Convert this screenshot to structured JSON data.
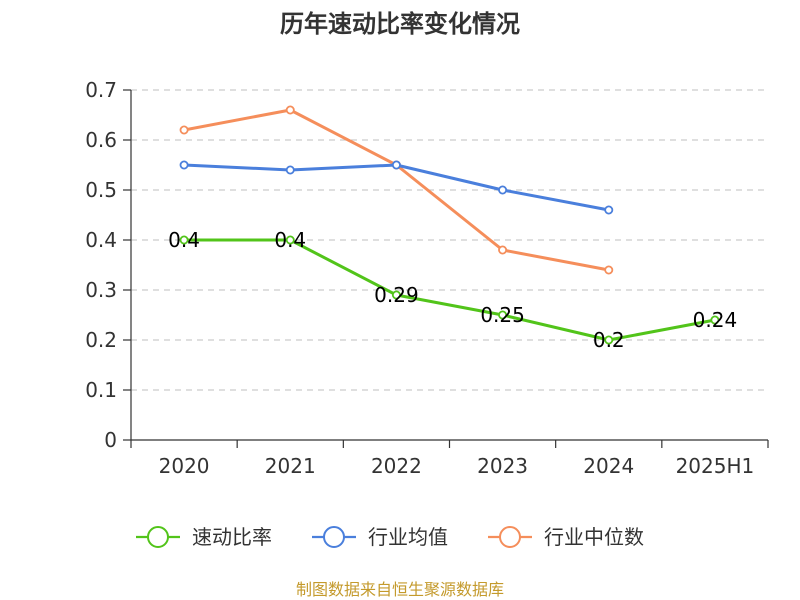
{
  "chart_data": {
    "type": "line",
    "title": "历年速动比率变化情况",
    "categories": [
      "2020",
      "2021",
      "2022",
      "2023",
      "2024",
      "2025H1"
    ],
    "ylim": [
      0,
      0.7
    ],
    "yticks": [
      "0",
      "0.1",
      "0.2",
      "0.3",
      "0.4",
      "0.5",
      "0.6",
      "0.7"
    ],
    "grid": true,
    "legend_position": "bottom",
    "series": [
      {
        "name": "速动比率",
        "color": "#52c41a",
        "values": [
          0.4,
          0.4,
          0.29,
          0.25,
          0.2,
          0.24
        ],
        "labels": [
          "0.4",
          "0.4",
          "0.29",
          "0.25",
          "0.2",
          "0.24"
        ]
      },
      {
        "name": "行业均值",
        "color": "#4a7fdc",
        "values": [
          0.55,
          0.54,
          0.55,
          0.5,
          0.46,
          null
        ]
      },
      {
        "name": "行业中位数",
        "color": "#f58e5b",
        "values": [
          0.62,
          0.66,
          0.55,
          0.38,
          0.34,
          null
        ]
      }
    ]
  },
  "source": "制图数据来自恒生聚源数据库"
}
